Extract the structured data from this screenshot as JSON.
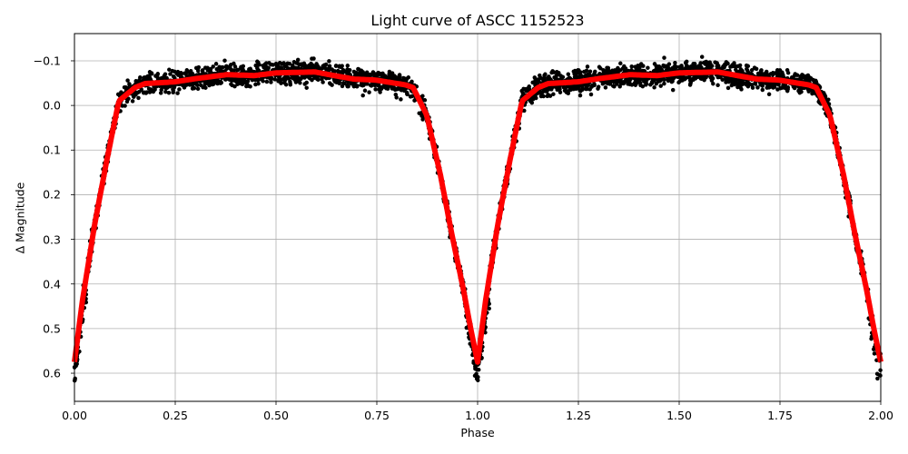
{
  "chart_data": {
    "type": "scatter",
    "title": "Light curve of ASCC 1152523",
    "xlabel": "Phase",
    "ylabel": "Δ Magnitude",
    "xlim": [
      0.0,
      2.0
    ],
    "ylim": [
      0.663,
      -0.161
    ],
    "y_inverted": true,
    "grid": true,
    "xticks": [
      0.0,
      0.25,
      0.5,
      0.75,
      1.0,
      1.25,
      1.5,
      1.75,
      2.0
    ],
    "xtick_labels": [
      "0.00",
      "0.25",
      "0.50",
      "0.75",
      "1.00",
      "1.25",
      "1.50",
      "1.75",
      "2.00"
    ],
    "yticks": [
      -0.1,
      0.0,
      0.1,
      0.2,
      0.3,
      0.4,
      0.5,
      0.6
    ],
    "ytick_labels": [
      "−0.1",
      "0.0",
      "0.1",
      "0.2",
      "0.3",
      "0.4",
      "0.5",
      "0.6"
    ],
    "series": [
      {
        "name": "observations",
        "style": "scatter",
        "color": "#000000",
        "description": "dense black points scattered ~±0.03 mag around model curve, repeated over two phases"
      },
      {
        "name": "model fit",
        "style": "line",
        "color": "#ff0000",
        "x": [
          0.0,
          0.02,
          0.05,
          0.08,
          0.11,
          0.15,
          0.175,
          0.25,
          0.3,
          0.378,
          0.446,
          0.5,
          0.597,
          0.65,
          0.694,
          0.746,
          0.822,
          0.84,
          0.874,
          0.908,
          0.937,
          0.964,
          0.985,
          1.0
        ],
        "y": [
          0.575,
          0.436,
          0.267,
          0.124,
          -0.01,
          -0.04,
          -0.049,
          -0.053,
          -0.06,
          -0.069,
          -0.067,
          -0.073,
          -0.075,
          -0.066,
          -0.059,
          -0.057,
          -0.046,
          -0.04,
          0.022,
          0.157,
          0.293,
          0.409,
          0.51,
          0.575
        ],
        "period_repeat": true
      }
    ]
  }
}
